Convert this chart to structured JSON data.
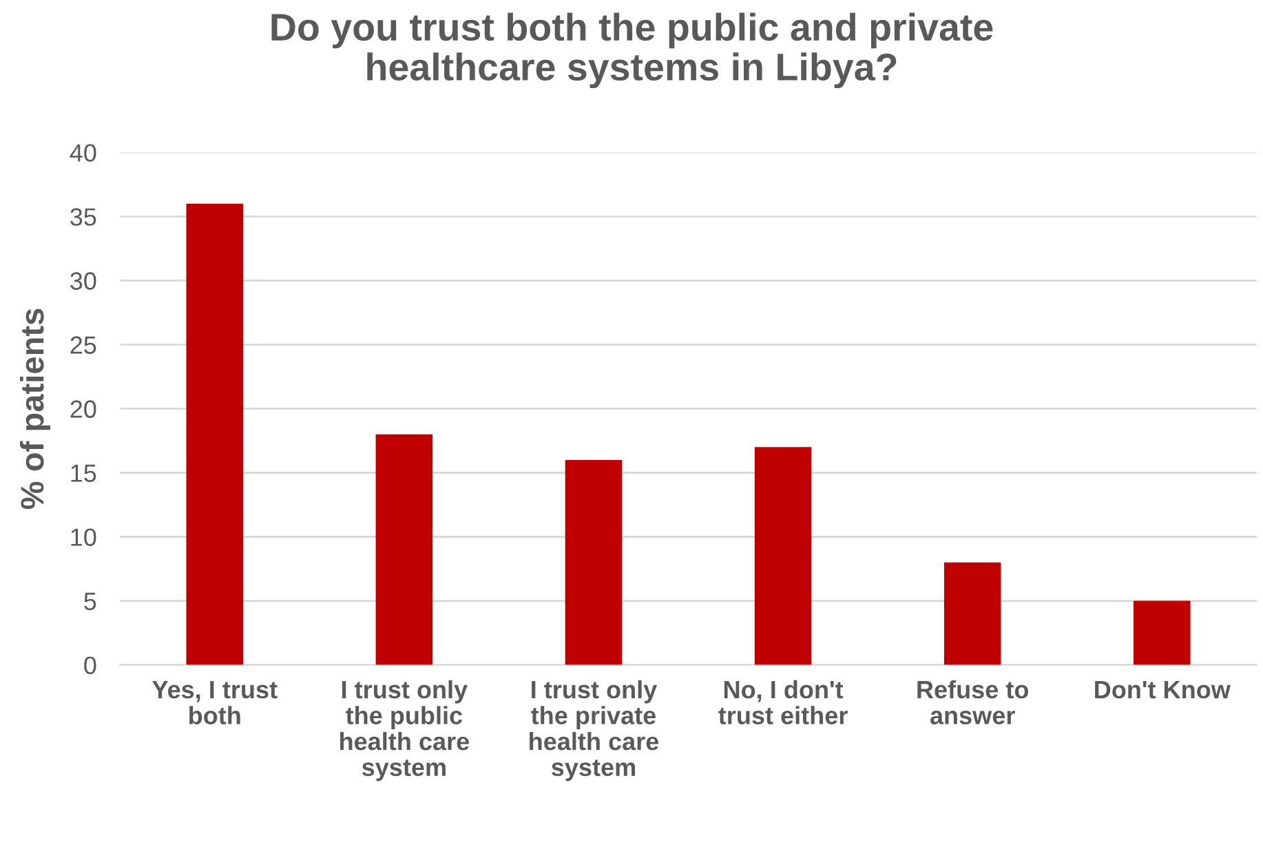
{
  "chart_data": {
    "type": "bar",
    "title": "Do you trust both the public and private\nhealthcare systems in Libya?",
    "ylabel": "% of patients",
    "categories": [
      "Yes, I trust\nboth",
      "I trust only\nthe public\nhealth care\nsystem",
      "I trust only\nthe private\nhealth care\nsystem",
      "No, I don't\ntrust either",
      "Refuse to\nanswer",
      "Don't Know"
    ],
    "values": [
      36,
      18,
      16,
      17,
      8,
      5
    ],
    "color": "#c00000",
    "ylim": [
      0,
      40
    ],
    "yticks": [
      0,
      5,
      10,
      15,
      20,
      25,
      30,
      35,
      40
    ],
    "grid": "y",
    "legend": false
  }
}
